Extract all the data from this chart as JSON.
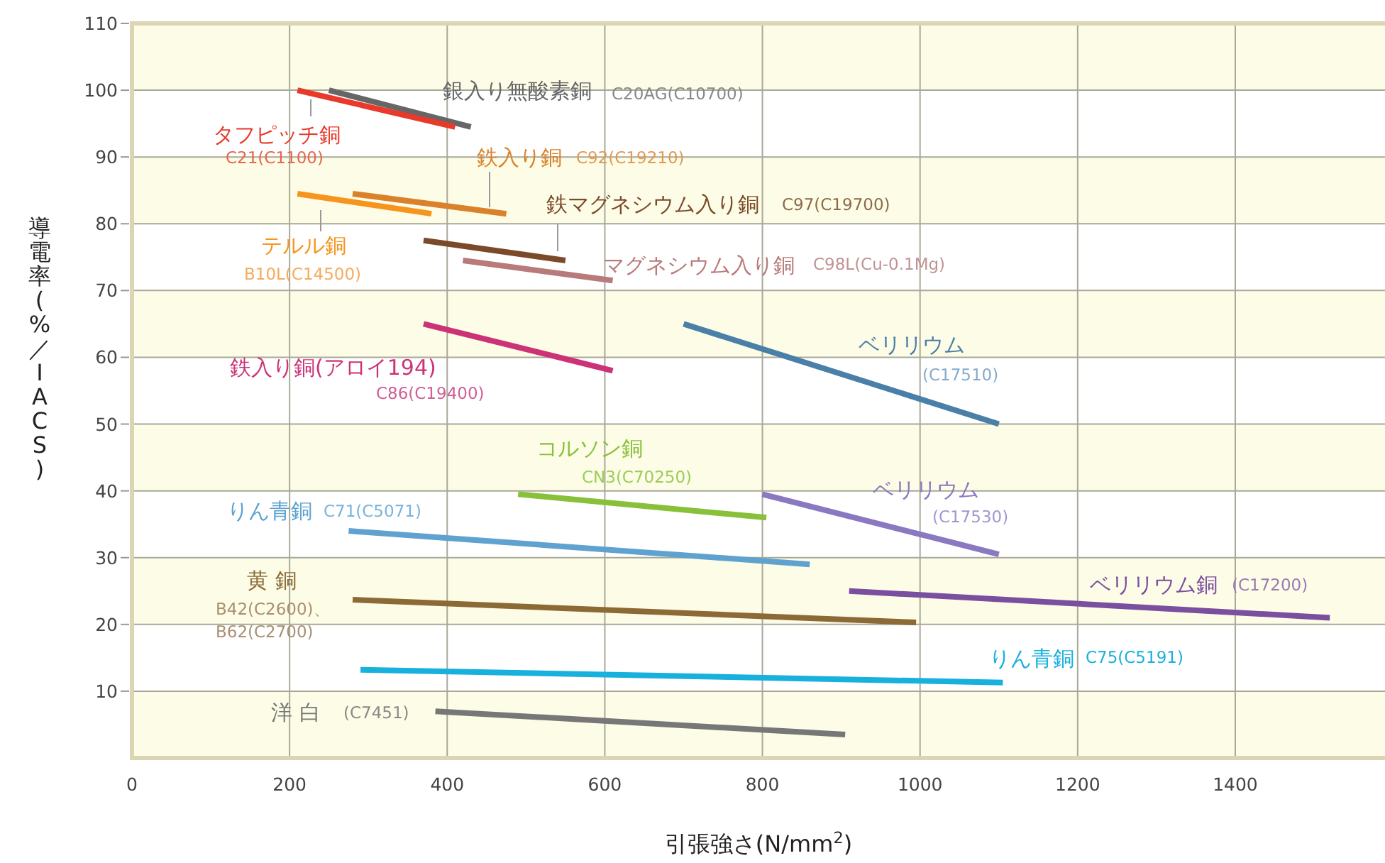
{
  "chart_data": {
    "type": "line",
    "xlabel": "引張強さ(N/mm$^{2}$)",
    "ylabel": "導電率(%／IACS)",
    "xlim": [
      0,
      1590
    ],
    "ylim": [
      0,
      110
    ],
    "xticks": [
      0,
      200,
      400,
      600,
      800,
      1000,
      1200,
      1400
    ],
    "yticks": [
      10,
      20,
      30,
      40,
      50,
      60,
      70,
      80,
      90,
      100,
      110
    ],
    "grid": true,
    "legend": false,
    "line_style": "solid",
    "marker": "none",
    "series": [
      {
        "name": "銀入り無酸素銅",
        "color": "#666666",
        "x": [
          250,
          430
        ],
        "values": [
          100,
          94.5
        ]
      },
      {
        "name": "タフピッチ銅",
        "color": "#e8392b",
        "x": [
          210,
          410
        ],
        "values": [
          100,
          94.5
        ]
      },
      {
        "name": "テルル銅",
        "color": "#f7941d",
        "x": [
          210,
          380
        ],
        "values": [
          84.5,
          81.5
        ]
      },
      {
        "name": "鉄入り銅",
        "color": "#d9822b",
        "x": [
          280,
          475
        ],
        "values": [
          84.5,
          81.5
        ]
      },
      {
        "name": "鉄マグネシウム入り銅",
        "color": "#7b4a2a",
        "x": [
          370,
          550
        ],
        "values": [
          77.5,
          74.5
        ]
      },
      {
        "name": "マグネシウム入り銅",
        "color": "#b87a7a",
        "x": [
          420,
          610
        ],
        "values": [
          74.5,
          71.5
        ]
      },
      {
        "name": "鉄入り銅(アロイ194)",
        "color": "#cc3377",
        "x": [
          370,
          610
        ],
        "values": [
          65,
          58
        ]
      },
      {
        "name": "ベリリウム",
        "color": "#4a7fa8",
        "x": [
          700,
          1100
        ],
        "values": [
          65,
          50
        ]
      },
      {
        "name": "コルソン銅",
        "color": "#88c03a",
        "x": [
          490,
          805
        ],
        "values": [
          39.5,
          36
        ]
      },
      {
        "name": "ベリリウム",
        "color": "#8a78c0",
        "x": [
          800,
          1100
        ],
        "values": [
          39.5,
          30.5
        ]
      },
      {
        "name": "りん青銅",
        "color": "#5fa2d0",
        "x": [
          275,
          860
        ],
        "values": [
          34,
          29
        ]
      },
      {
        "name": "黄 銅",
        "color": "#8b6a35",
        "x": [
          280,
          995
        ],
        "values": [
          23.7,
          20.3
        ]
      },
      {
        "name": "ベリリウム銅",
        "color": "#7a4fa0",
        "x": [
          910,
          1520
        ],
        "values": [
          25,
          21
        ]
      },
      {
        "name": "りん青銅",
        "color": "#18b0dc",
        "x": [
          290,
          1105
        ],
        "values": [
          13.2,
          11.3
        ]
      },
      {
        "name": "洋 白",
        "color": "#777777",
        "x": [
          385,
          905
        ],
        "values": [
          7,
          3.5
        ]
      }
    ],
    "annotations": [
      "C20AG(C10700)",
      "C21(C1100)",
      "B10L(C14500)",
      "C92(C19210)",
      "C97(C19700)",
      "C98L(Cu-0.1Mg)",
      "C86(C19400)",
      "(C17510)",
      "CN3(C70250)",
      "(C17530)",
      "C71(C5071)",
      "B42(C2600)、",
      "B62(C2700)",
      "(C17200)",
      "C75(C5191)",
      "(C7451)"
    ]
  }
}
